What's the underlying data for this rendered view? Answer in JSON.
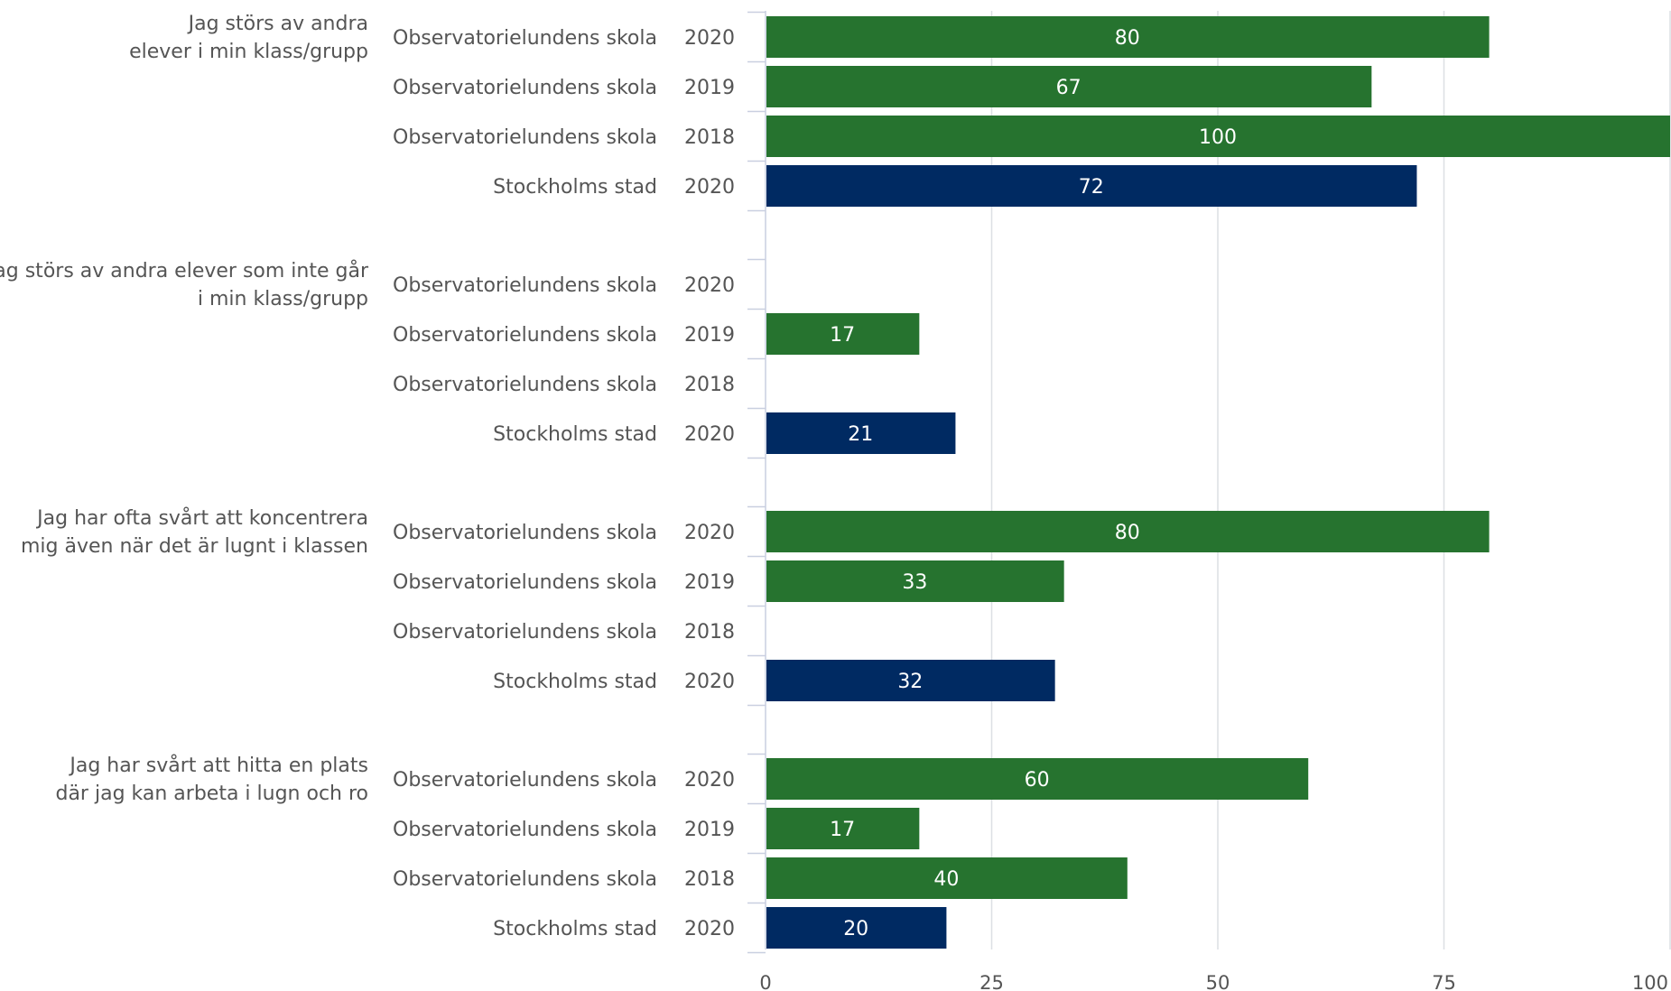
{
  "chart_data": {
    "type": "bar",
    "orientation": "horizontal",
    "xlim": [
      0,
      100
    ],
    "x_ticks": [
      "0",
      "25",
      "50",
      "75",
      "100"
    ],
    "grid": "vertical",
    "colors": {
      "school": "#26732f",
      "city": "#002a62"
    },
    "groups": [
      {
        "label_lines": [
          "Jag störs av andra",
          "elever i min klass/grupp"
        ],
        "rows": [
          {
            "entity": "Observatorielundens skola",
            "year": "2020",
            "value": 80,
            "color": "school"
          },
          {
            "entity": "Observatorielundens skola",
            "year": "2019",
            "value": 67,
            "color": "school"
          },
          {
            "entity": "Observatorielundens skola",
            "year": "2018",
            "value": 100,
            "color": "school"
          },
          {
            "entity": "Stockholms stad",
            "year": "2020",
            "value": 72,
            "color": "city"
          }
        ]
      },
      {
        "label_lines": [
          "Jag störs av andra elever som inte går",
          "i min klass/grupp"
        ],
        "rows": [
          {
            "entity": "Observatorielundens skola",
            "year": "2020",
            "value": null,
            "color": "school"
          },
          {
            "entity": "Observatorielundens skola",
            "year": "2019",
            "value": 17,
            "color": "school"
          },
          {
            "entity": "Observatorielundens skola",
            "year": "2018",
            "value": null,
            "color": "school"
          },
          {
            "entity": "Stockholms stad",
            "year": "2020",
            "value": 21,
            "color": "city"
          }
        ]
      },
      {
        "label_lines": [
          "Jag har ofta svårt att koncentrera",
          "mig även när det är lugnt i klassen"
        ],
        "rows": [
          {
            "entity": "Observatorielundens skola",
            "year": "2020",
            "value": 80,
            "color": "school"
          },
          {
            "entity": "Observatorielundens skola",
            "year": "2019",
            "value": 33,
            "color": "school"
          },
          {
            "entity": "Observatorielundens skola",
            "year": "2018",
            "value": null,
            "color": "school"
          },
          {
            "entity": "Stockholms stad",
            "year": "2020",
            "value": 32,
            "color": "city"
          }
        ]
      },
      {
        "label_lines": [
          "Jag har svårt att hitta en plats",
          "där jag kan arbeta i lugn och ro"
        ],
        "rows": [
          {
            "entity": "Observatorielundens skola",
            "year": "2020",
            "value": 60,
            "color": "school"
          },
          {
            "entity": "Observatorielundens skola",
            "year": "2019",
            "value": 17,
            "color": "school"
          },
          {
            "entity": "Observatorielundens skola",
            "year": "2018",
            "value": 40,
            "color": "school"
          },
          {
            "entity": "Stockholms stad",
            "year": "2020",
            "value": 20,
            "color": "city"
          }
        ]
      }
    ]
  }
}
